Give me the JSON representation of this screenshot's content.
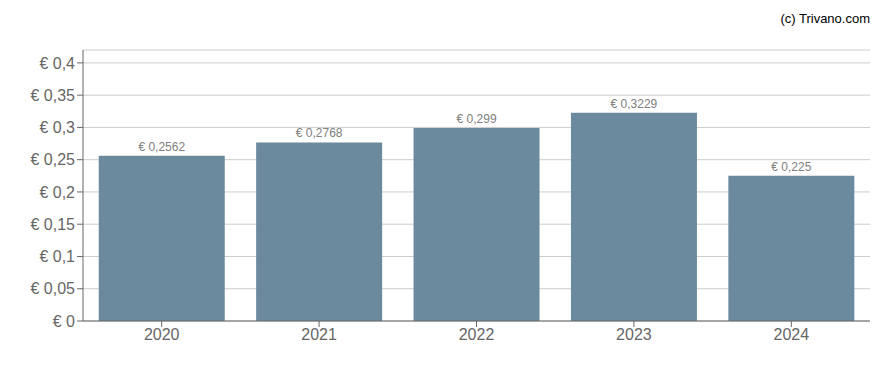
{
  "chart_data": {
    "type": "bar",
    "categories": [
      "2020",
      "2021",
      "2022",
      "2023",
      "2024"
    ],
    "values": [
      0.2562,
      0.2768,
      0.299,
      0.3229,
      0.225
    ],
    "value_labels": [
      "€ 0,2562",
      "€ 0,2768",
      "€ 0,299",
      "€ 0,3229",
      "€ 0,225"
    ],
    "data_labels": true,
    "color": "#6b8a9e",
    "ylim": [
      0,
      0.42
    ],
    "yticks": [
      {
        "value": 0,
        "label": "€ 0"
      },
      {
        "value": 0.05,
        "label": "€ 0,05"
      },
      {
        "value": 0.1,
        "label": "€ 0,1"
      },
      {
        "value": 0.15,
        "label": "€ 0,15"
      },
      {
        "value": 0.2,
        "label": "€ 0,2"
      },
      {
        "value": 0.25,
        "label": "€ 0,25"
      },
      {
        "value": 0.3,
        "label": "€ 0,3"
      },
      {
        "value": 0.35,
        "label": "€ 0,35"
      },
      {
        "value": 0.4,
        "label": "€ 0,4"
      }
    ],
    "grid": true,
    "annotation": "(c) Trivano.com"
  }
}
